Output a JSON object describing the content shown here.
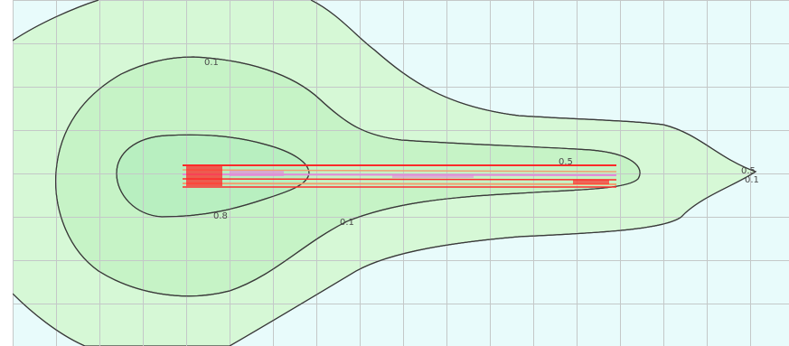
{
  "diagram": {
    "type": "contour-plot",
    "colors": {
      "background": "#e8fbfb",
      "grid": "#c4c8c8",
      "band_outer": "#d6f8d6",
      "band_middle": "#c6f3c6",
      "band_inner": "#b8efc0",
      "contour_line": "#3a3a3a",
      "source_primary": "#ff2a2a",
      "source_secondary": "#e28cd8",
      "source_tertiary": "#f0a070"
    },
    "contour_labels": [
      {
        "id": "outer",
        "text": "0.1"
      },
      {
        "id": "middle",
        "text": "0.5"
      },
      {
        "id": "inner",
        "text": "0.8"
      },
      {
        "id": "tip-middle",
        "text": "0.1"
      },
      {
        "id": "lower-middle",
        "text": "0.5"
      },
      {
        "id": "tip-outer",
        "text": "0.1"
      }
    ]
  }
}
